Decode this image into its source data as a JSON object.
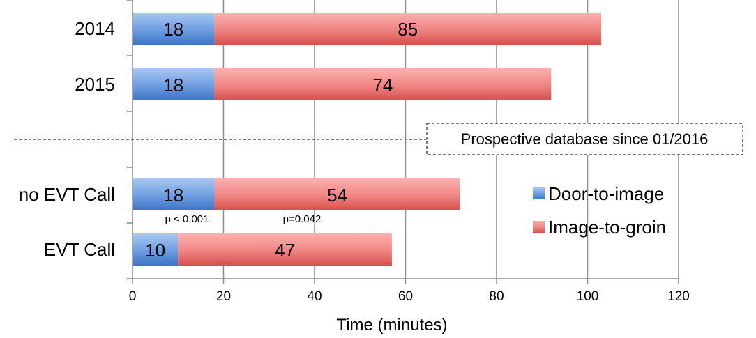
{
  "chart_data": {
    "type": "bar",
    "orientation": "horizontal",
    "stacked": true,
    "categories": [
      "2014",
      "2015",
      "no EVT Call",
      "EVT Call"
    ],
    "series": [
      {
        "name": "Door-to-image",
        "values": [
          18,
          18,
          18,
          10
        ],
        "color": "#4f86d4"
      },
      {
        "name": "Image-to-groin",
        "values": [
          85,
          74,
          54,
          47
        ],
        "color": "#e0615f"
      }
    ],
    "xlabel": "Time (minutes)",
    "xlim": [
      0,
      120
    ],
    "xticks": [
      "0",
      "20",
      "40",
      "60",
      "80",
      "100",
      "120"
    ],
    "grid": true,
    "legend_position": "right",
    "annotations": {
      "p_values": [
        "p < 0.001",
        "p=0.042"
      ],
      "separator_box": "Prospective database since 01/2016"
    }
  }
}
